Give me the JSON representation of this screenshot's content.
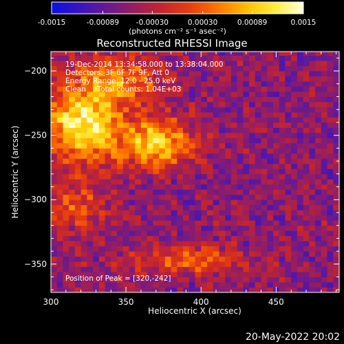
{
  "colorbar": {
    "tick_labels": [
      "-0.0015",
      "-0.00089",
      "-0.00030",
      "0.00030",
      "0.00089",
      "0.0015"
    ],
    "tick_values": [
      -0.0015,
      -0.00089,
      -0.0003,
      0.0003,
      0.00089,
      0.0015
    ],
    "range": [
      -0.0015,
      0.0015
    ],
    "unit_label": "(photons cm⁻² s⁻¹ asec⁻²)",
    "colors": [
      "#0a10e6",
      "#3a14c0",
      "#6a1a8e",
      "#9a1e5c",
      "#c8262a",
      "#e8400e",
      "#ff7a00",
      "#ffc000",
      "#ffee40",
      "#ffffe0"
    ]
  },
  "chart_data": {
    "type": "heatmap",
    "title": "Reconstructed RHESSI Image",
    "xlabel": "Heliocentric X (arcsec)",
    "ylabel": "Heliocentric Y (arcsec)",
    "xlim": [
      300,
      492
    ],
    "ylim": [
      -372,
      -185
    ],
    "x_ticks": [
      300,
      350,
      400,
      450
    ],
    "y_ticks": [
      -200,
      -250,
      -300,
      -350
    ],
    "x_tick_labels": [
      "300",
      "350",
      "400",
      "450"
    ],
    "y_tick_labels": [
      "−200",
      "−250",
      "−300",
      "−350"
    ],
    "sources": [
      {
        "x": 320,
        "y": -242,
        "peak": 0.0015,
        "sx": 18,
        "sy": 20
      },
      {
        "x": 370,
        "y": -256,
        "peak": 0.0013,
        "sx": 17,
        "sy": 13
      },
      {
        "x": 345,
        "y": -208,
        "peak": 0.0008,
        "sx": 20,
        "sy": 14
      },
      {
        "x": 390,
        "y": -347,
        "peak": 0.0007,
        "sx": 26,
        "sy": 7
      },
      {
        "x": 318,
        "y": -305,
        "peak": 0.00045,
        "sx": 15,
        "sy": 14
      }
    ],
    "background_level": -0.0006,
    "annotations": [
      "19-Dec-2014 13:34:58.000 to 13:38:04.000",
      "Detectors: 3F 6F 7F 9F, Att 0",
      "Energy Range: 12.0 - 25.0 keV",
      "Clean     Total counts: 1.04E+03",
      "Position of Peak = [320,-242]"
    ],
    "peak_position": [
      320,
      -242
    ]
  },
  "footer": {
    "date": "20-May-2022 20:02"
  }
}
